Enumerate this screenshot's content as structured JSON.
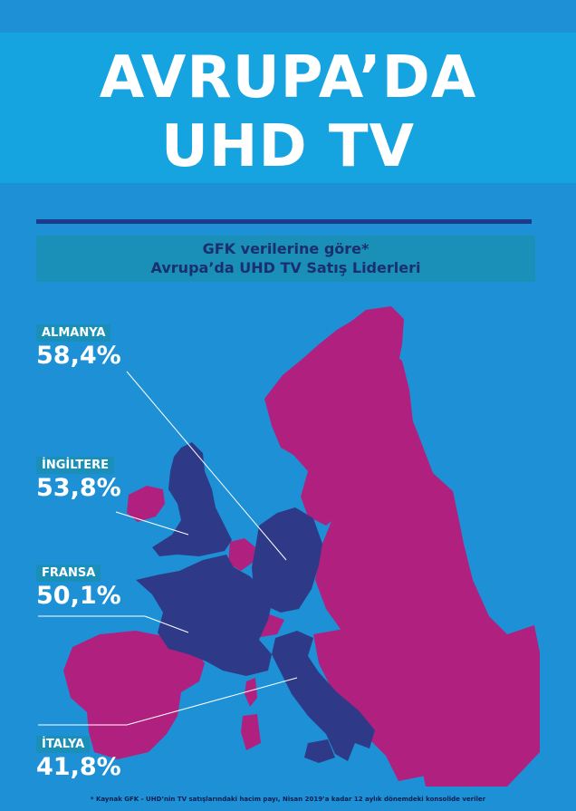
{
  "title": {
    "line1": "AVRUPA’DA",
    "line2": "UHD TV"
  },
  "subtitle": {
    "line1": "GFK verilerine göre*",
    "line2": "Avrupa’da UHD TV Satış Liderleri"
  },
  "leaders": [
    {
      "country": "ALMANYA",
      "share": "58,4%"
    },
    {
      "country": "İNGİLTERE",
      "share": "53,8%"
    },
    {
      "country": "FRANSA",
      "share": "50,1%"
    },
    {
      "country": "İTALYA",
      "share": "41,8%"
    }
  ],
  "footnote": "* Kaynak GFK - UHD’nin TV satışlarındaki hacim payı, Nisan 2019’a kadar 12 aylık dönemdeki konsolide veriler",
  "colors": {
    "background": "#1E90D6",
    "title_band": "#16A4E0",
    "leader_countries": "#2E3A87",
    "other_countries": "#B0217F",
    "badge": "#1A8FB8"
  }
}
